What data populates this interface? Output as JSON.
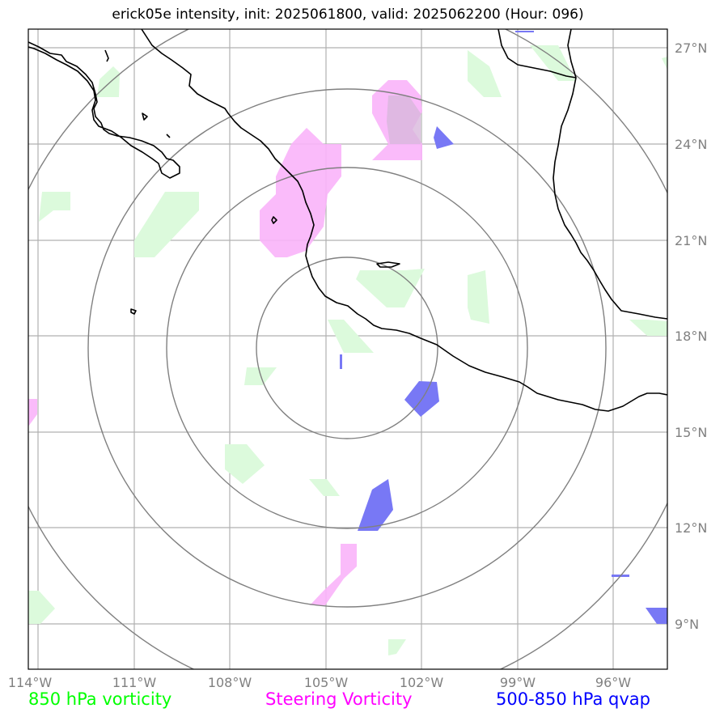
{
  "title": "erick05e intensity, init: 2025061800, valid: 2025062200 (Hour: 096)",
  "lon_labels": [
    "114°W",
    "111°W",
    "108°W",
    "105°W",
    "102°W",
    "99°W",
    "96°W"
  ],
  "lat_labels": [
    "27°N",
    "24°N",
    "21°N",
    "18°N",
    "15°N",
    "12°N",
    "9°N"
  ],
  "legend": [
    {
      "label": "850 hPa vorticity",
      "color": "#00ff00"
    },
    {
      "label": "Steering Vorticity",
      "color": "#ff00ff"
    },
    {
      "label": "500-850 hPa qvap",
      "color": "#0000ff"
    }
  ],
  "colors": {
    "vorticity_850": "#dcfadc",
    "steering_vorticity": "#fab4fa",
    "qvap": "#7878f5",
    "coastline": "#000000",
    "gridlines": "#b0b0b0",
    "range_rings": "#808080"
  },
  "storm_center": {
    "lat": 17.7,
    "lon": -104.8
  },
  "range_rings_count": 4
}
